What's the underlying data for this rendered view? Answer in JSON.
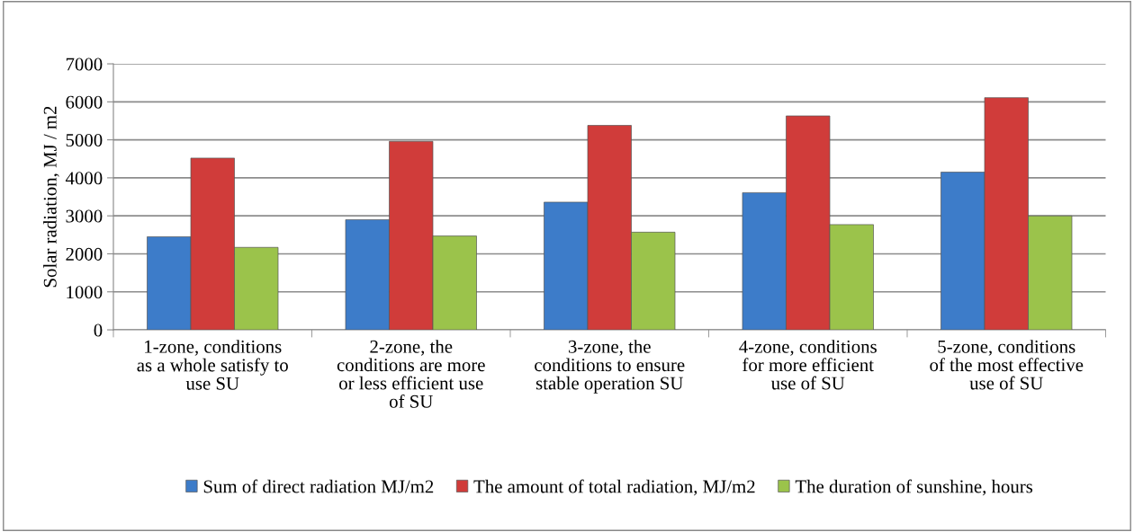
{
  "chart_data": {
    "type": "bar",
    "ylabel": "Solar radiation, MJ / m2",
    "categories": [
      "1-zone, conditions\nas a whole satisfy to\nuse SU",
      "2-zone, the\nconditions are more\nor less efficient use\nof SU",
      "3-zone, the\nconditions to ensure\nstable operation SU",
      "4-zone, conditions\nfor more efficient\nuse of SU",
      "5-zone, conditions\nof the most effective\nuse of SU"
    ],
    "series": [
      {
        "name": "Sum of direct radiation MJ/m2",
        "color": "#3d7cc9",
        "values": [
          2450,
          2900,
          3360,
          3610,
          4150
        ]
      },
      {
        "name": "The amount of total radiation, MJ/m2",
        "color": "#d03c3a",
        "values": [
          4520,
          4960,
          5380,
          5630,
          6110
        ]
      },
      {
        "name": "The duration of sunshine, hours",
        "color": "#9bc34b",
        "values": [
          2170,
          2470,
          2570,
          2770,
          3000
        ]
      }
    ],
    "ylim": [
      0,
      7000
    ],
    "yticks": [
      0,
      1000,
      2000,
      3000,
      4000,
      5000,
      6000,
      7000
    ],
    "grid": "y",
    "legend": "bottom"
  }
}
